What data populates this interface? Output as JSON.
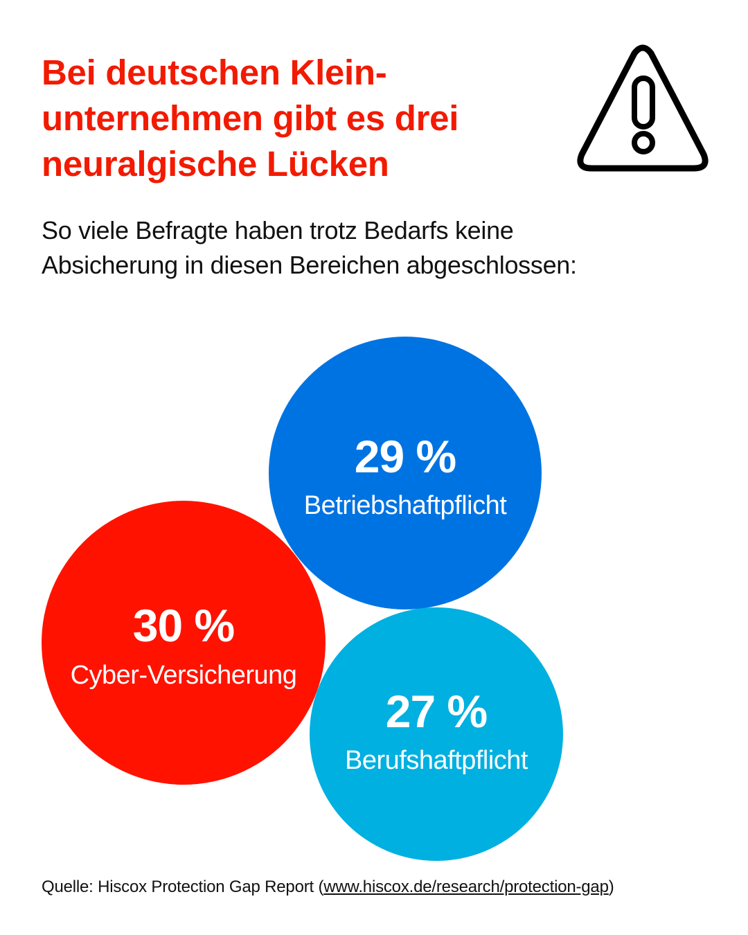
{
  "header": {
    "title": "Bei deutschen Klein-\nunternehmen gibt es drei\nneuralgische Lücken",
    "subtitle": "So viele Befragte haben trotz Bedarfs keine\nAbsicherung in diesen Bereichen abgeschlossen:",
    "icon": "warning-triangle-icon"
  },
  "chart_data": {
    "type": "bubble",
    "unit": "%",
    "categories": [
      "Betriebshaftpflicht",
      "Cyber-Versicherung",
      "Berufshaftpflicht"
    ],
    "values": [
      29,
      30,
      27
    ],
    "value_labels": [
      "29 %",
      "30 %",
      "27 %"
    ],
    "colors": [
      "#0073e2",
      "#ff1300",
      "#00b0e0"
    ]
  },
  "footer": {
    "source_prefix": "Quelle: Hiscox Protection Gap Report (",
    "source_link": "www.hiscox.de/research/protection-gap",
    "source_suffix": ")"
  }
}
